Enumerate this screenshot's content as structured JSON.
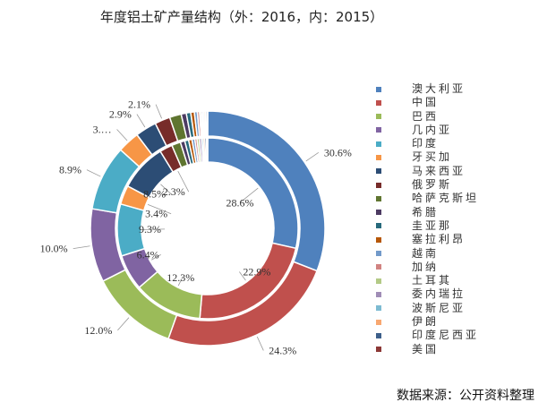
{
  "chart_data": {
    "type": "donut",
    "title": "年度铝土矿产量结构（外：2016，内：2015）",
    "categories": [
      "澳大利亚",
      "中国",
      "巴西",
      "几内亚",
      "印度",
      "牙买加",
      "马来西亚",
      "俄罗斯",
      "哈萨克斯坦",
      "希腊",
      "圭亚那",
      "塞拉利昂",
      "越南",
      "加纳",
      "土耳其",
      "委内瑞拉",
      "波斯尼亚",
      "伊朗",
      "印度尼西亚",
      "美国"
    ],
    "colors": [
      "#4f81bd",
      "#c0504d",
      "#9bbb59",
      "#8064a2",
      "#4bacc6",
      "#f79646",
      "#2c4d75",
      "#772c2a",
      "#5f7530",
      "#4d3b62",
      "#276a7c",
      "#b65708",
      "#729aca",
      "#d18381",
      "#b3ca86",
      "#a08db6",
      "#7dbbd2",
      "#f8a871",
      "#3d5f8a",
      "#8c3836"
    ],
    "series": [
      {
        "name": "2016",
        "ring": "outer",
        "values": [
          30.6,
          24.3,
          12.0,
          10.0,
          8.9,
          3.0,
          2.9,
          2.1,
          1.6,
          0.7,
          0.6,
          0.5,
          0.4,
          0.3,
          0.2,
          0.2,
          0.2,
          0.2,
          0.2,
          0.1
        ],
        "labels": [
          "30.6%",
          "24.3%",
          "12.0%",
          "10.0%",
          "8.9%",
          "3.…",
          "2.9%",
          "2.1%",
          "",
          "",
          "",
          "",
          "",
          "",
          "",
          "",
          "",
          "",
          "",
          ""
        ]
      },
      {
        "name": "2015",
        "ring": "inner",
        "values": [
          28.6,
          22.9,
          12.3,
          6.4,
          9.3,
          3.4,
          8.5,
          2.3,
          1.6,
          0.8,
          0.7,
          0.6,
          0.5,
          0.4,
          0.4,
          0.4,
          0.3,
          0.3,
          0.3,
          0.2
        ],
        "labels": [
          "28.6%",
          "22.9%",
          "12.3%",
          "6.4%",
          "9.3%",
          "3.4%",
          "8.5%",
          "2.3%",
          "",
          "",
          "",
          "",
          "",
          "",
          "",
          "",
          "",
          "",
          "",
          ""
        ]
      }
    ]
  },
  "source": "数据来源：公开资料整理"
}
